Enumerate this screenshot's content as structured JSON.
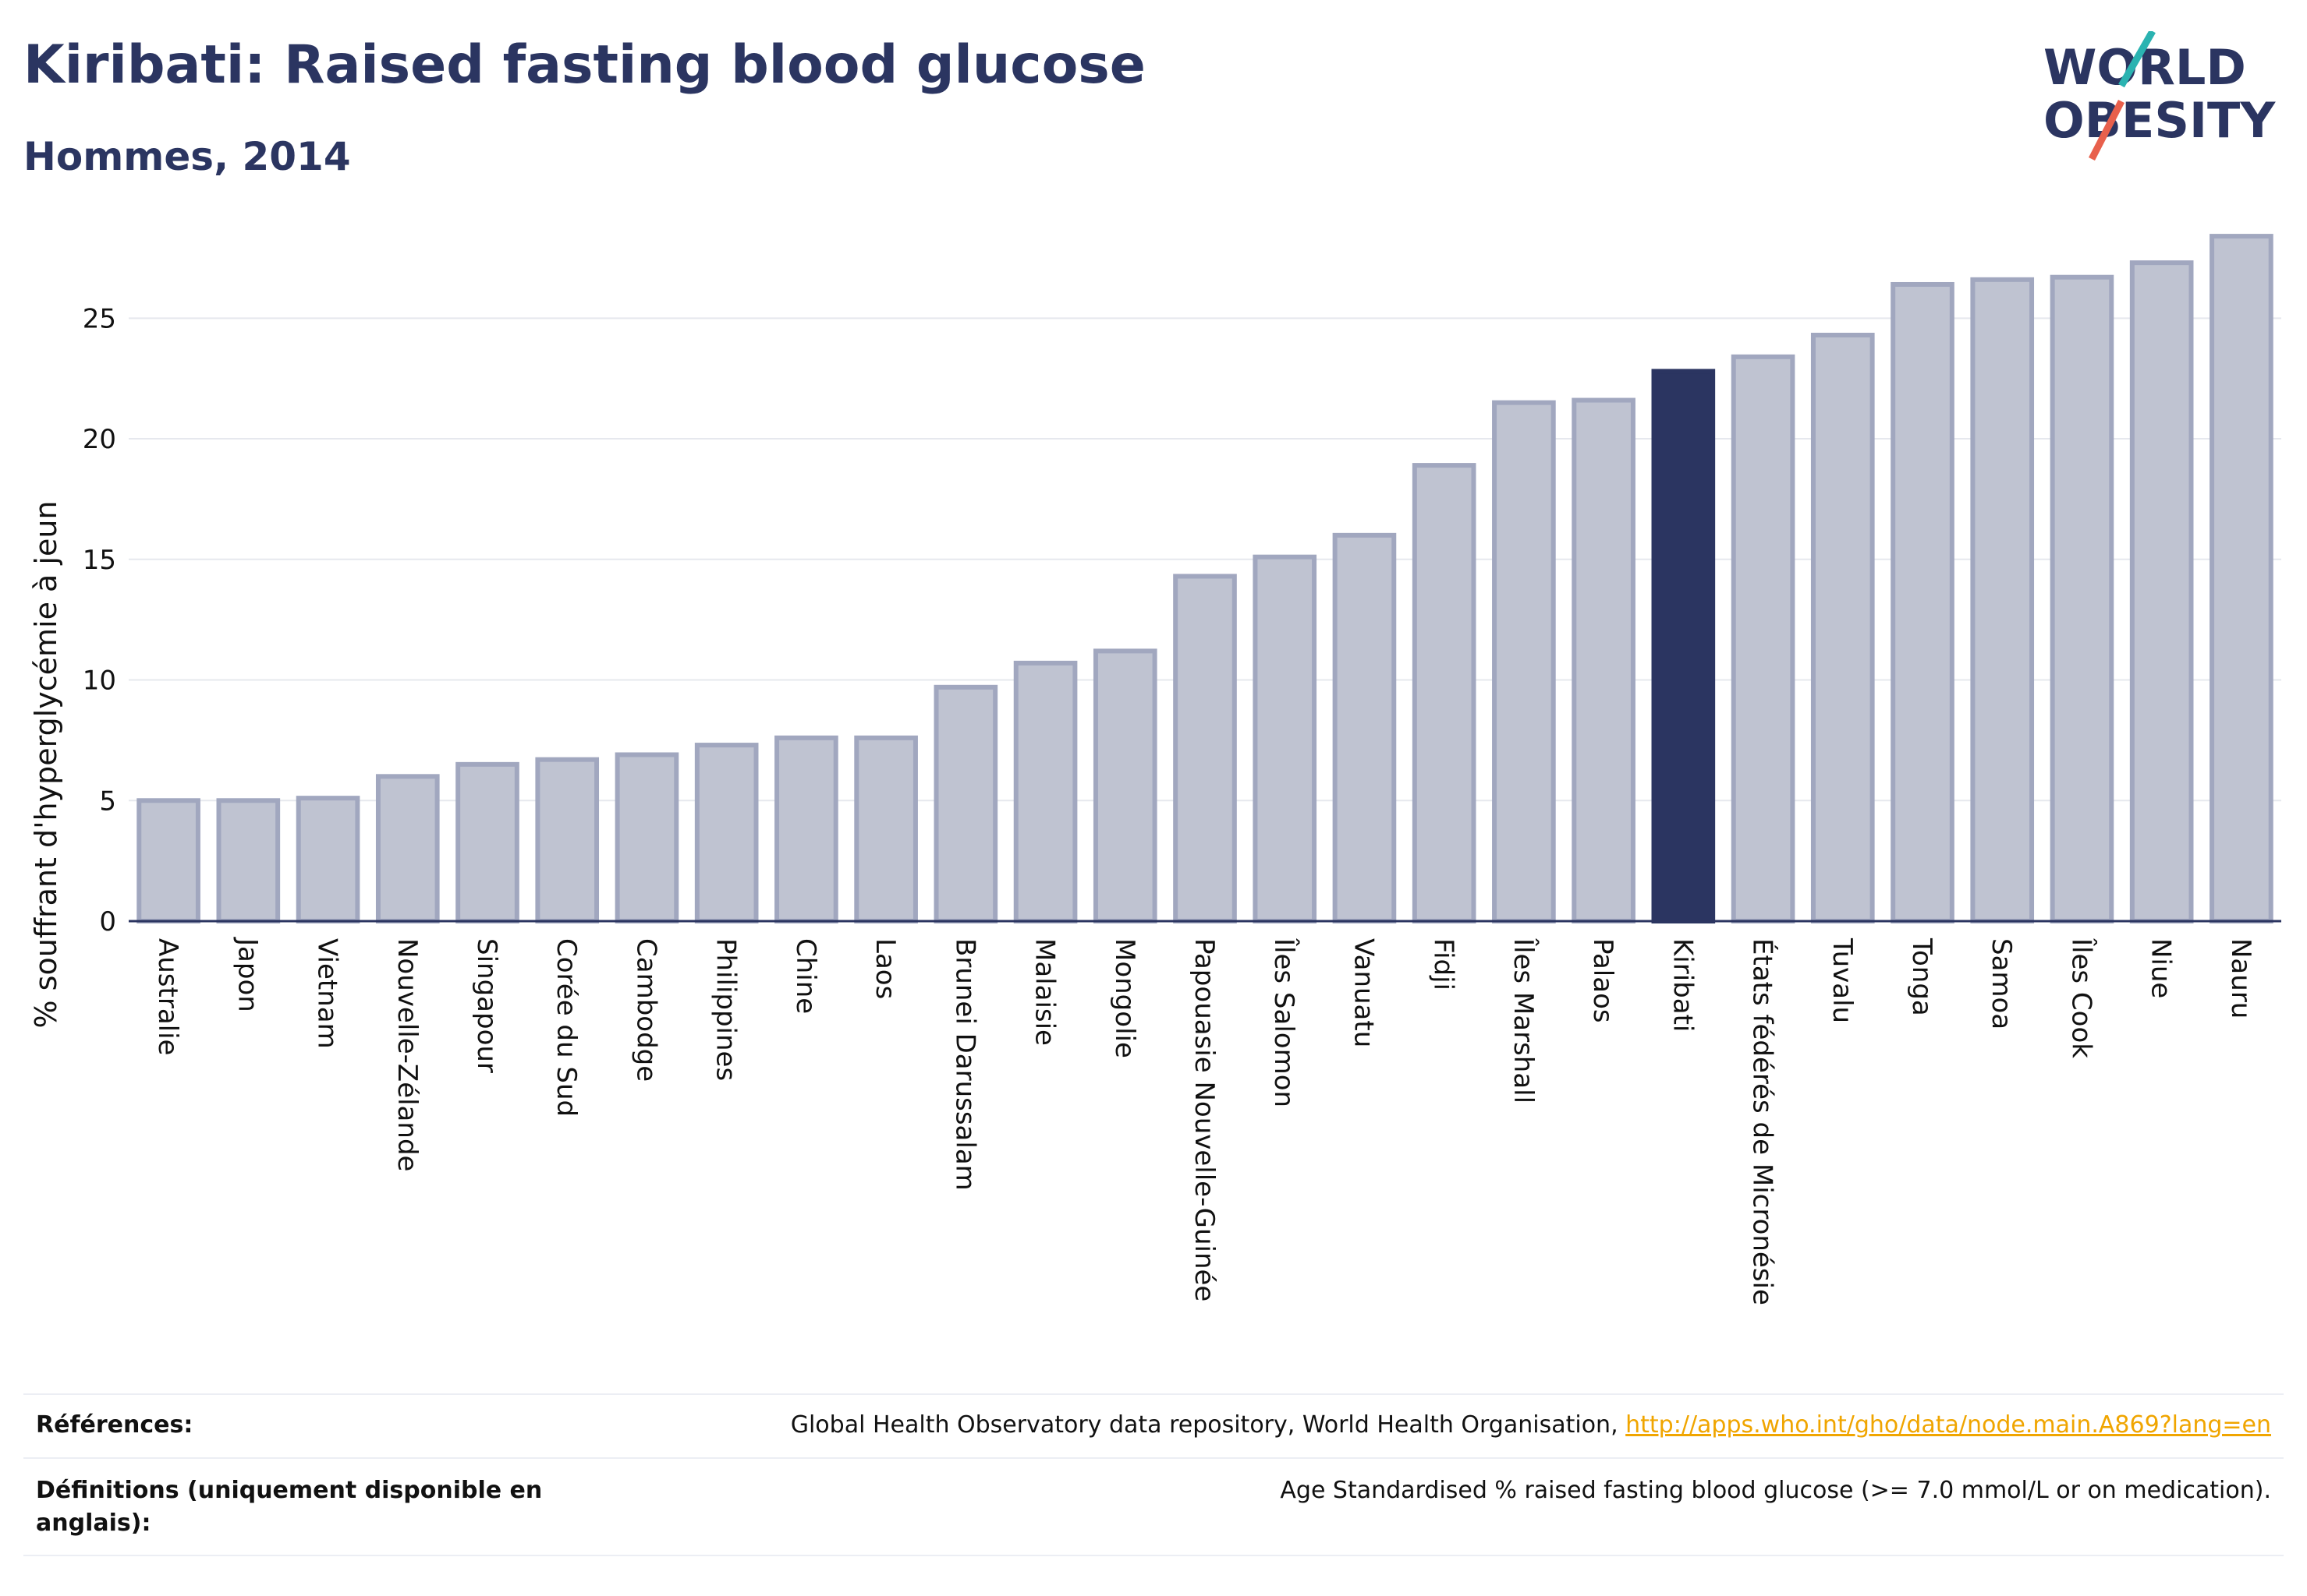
{
  "header": {
    "title": "Kiribati: Raised fasting blood glucose",
    "subtitle": "Hommes, 2014"
  },
  "logo": {
    "line1": "WORLD",
    "line2": "OBESITY",
    "colors": {
      "text": "#2b3561",
      "slash_teal": "#2bb3b1",
      "slash_red": "#e8604c"
    }
  },
  "chart_data": {
    "type": "bar",
    "ylabel": "% souffrant d'hyperglycémie à jeun",
    "xlabel": "",
    "ylim": [
      0,
      28.5
    ],
    "yticks": [
      0,
      5,
      10,
      15,
      20,
      25
    ],
    "grid": true,
    "highlight": "Kiribati",
    "colors": {
      "bar": "#bfc3d1",
      "bar_border": "#a1a7bf",
      "highlight": "#2b3561",
      "axis": "#2b3561",
      "grid": "#e6e8ee"
    },
    "categories": [
      "Australie",
      "Japon",
      "Vietnam",
      "Nouvelle-Zélande",
      "Singapour",
      "Corée du Sud",
      "Cambodge",
      "Philippines",
      "Chine",
      "Laos",
      "Brunei Darussalam",
      "Malaisie",
      "Mongolie",
      "Papouasie Nouvelle-Guinée",
      "Îles Salomon",
      "Vanuatu",
      "Fidji",
      "Îles Marshall",
      "Palaos",
      "Kiribati",
      "États fédérés de Micronésie",
      "Tuvalu",
      "Tonga",
      "Samoa",
      "Îles Cook",
      "Niue",
      "Nauru"
    ],
    "values": [
      5.0,
      5.0,
      5.1,
      6.0,
      6.5,
      6.7,
      6.9,
      7.3,
      7.6,
      7.6,
      9.7,
      10.7,
      11.2,
      14.3,
      15.1,
      16.0,
      18.9,
      21.5,
      21.6,
      22.8,
      23.4,
      24.3,
      26.4,
      26.6,
      26.7,
      27.3,
      28.4
    ]
  },
  "footer": {
    "references_label": "Références:",
    "references_text": "Global Health Observatory data repository, World Health Organisation, ",
    "references_link": "http://apps.who.int/gho/data/node.main.A869?lang=en",
    "definitions_label_1": "Définitions (uniquement disponible en",
    "definitions_label_2": "anglais):",
    "definitions_text": "Age Standardised % raised fasting blood glucose (>= 7.0 mmol/L or on medication)."
  }
}
